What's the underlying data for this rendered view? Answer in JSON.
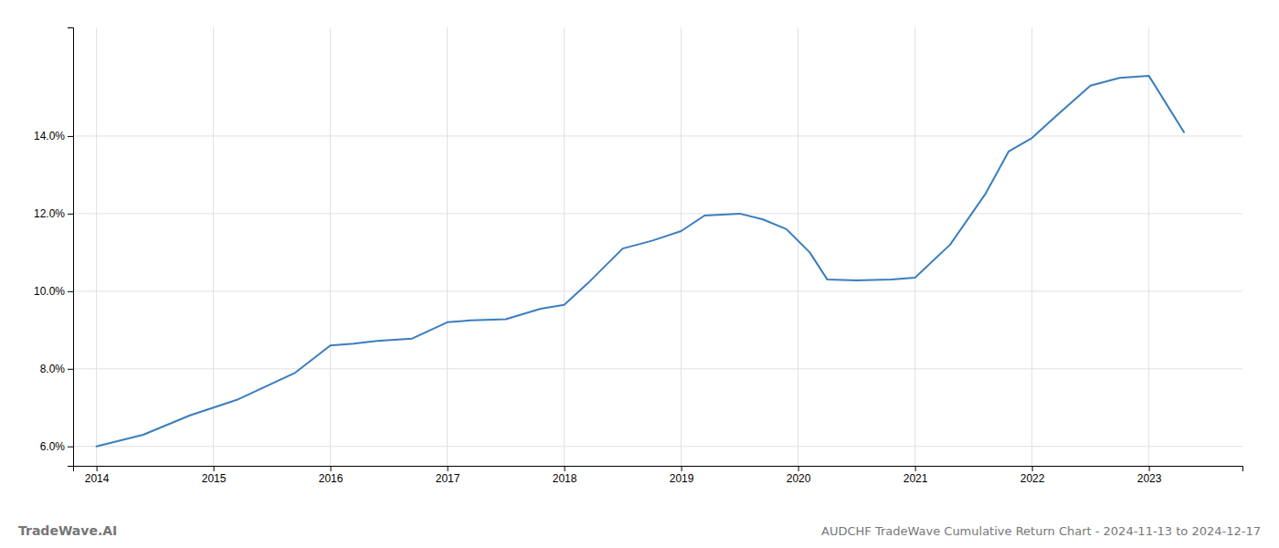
{
  "chart_data": {
    "type": "line",
    "title": "AUDCHF TradeWave Cumulative Return Chart - 2024-11-13 to 2024-12-17",
    "annotations": [
      "TradeWave.AI"
    ],
    "color": "#3a7ebf",
    "x": [
      2014.0,
      2014.4,
      2014.8,
      2015.2,
      2015.7,
      2016.0,
      2016.2,
      2016.4,
      2016.7,
      2017.0,
      2017.2,
      2017.5,
      2017.8,
      2018.0,
      2018.2,
      2018.5,
      2018.75,
      2019.0,
      2019.1,
      2019.2,
      2019.5,
      2019.7,
      2019.9,
      2020.1,
      2020.25,
      2020.5,
      2020.8,
      2021.0,
      2021.3,
      2021.6,
      2021.8,
      2022.0,
      2022.2,
      2022.5,
      2022.75,
      2023.0,
      2023.3
    ],
    "values": [
      6.0,
      6.3,
      6.8,
      7.2,
      7.9,
      8.6,
      8.65,
      8.72,
      8.78,
      9.2,
      9.25,
      9.28,
      9.55,
      9.65,
      10.2,
      11.1,
      11.3,
      11.55,
      11.75,
      11.95,
      12.0,
      11.85,
      11.6,
      11.0,
      10.3,
      10.28,
      10.3,
      10.35,
      11.2,
      12.5,
      13.6,
      13.95,
      14.5,
      15.3,
      15.5,
      15.55,
      14.1
    ],
    "xlim": [
      2013.8,
      2023.8
    ],
    "ylim": [
      5.5,
      16.8
    ],
    "xticks": [
      2014,
      2015,
      2016,
      2017,
      2018,
      2019,
      2020,
      2021,
      2022,
      2023
    ],
    "yticks": [
      {
        "value": 6.0,
        "label": "6.0%"
      },
      {
        "value": 8.0,
        "label": "8.0%"
      },
      {
        "value": 10.0,
        "label": "10.0%"
      },
      {
        "value": 12.0,
        "label": "12.0%"
      },
      {
        "value": 14.0,
        "label": "14.0%"
      }
    ],
    "grid": true
  }
}
